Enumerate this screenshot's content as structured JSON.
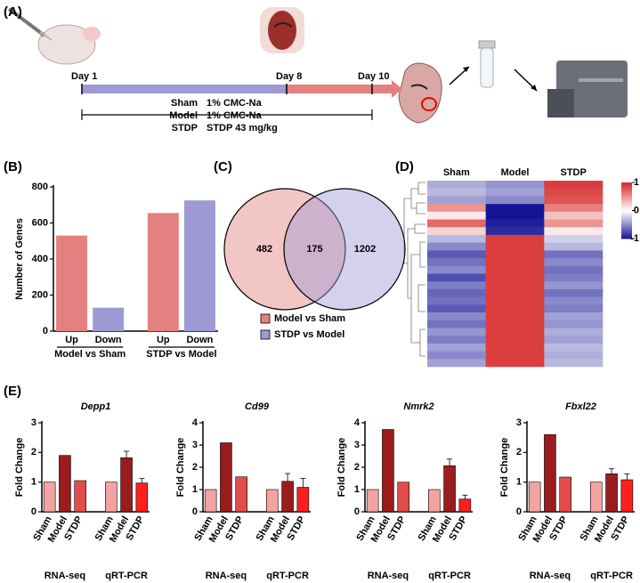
{
  "panel_labels": [
    "(A)",
    "(B)",
    "(C)",
    "(D)",
    "(E)"
  ],
  "timeline": {
    "days": [
      "Day 1",
      "Day 8",
      "Day 10"
    ],
    "groups": [
      {
        "name": "Sham",
        "treatment": "1% CMC-Na"
      },
      {
        "name": "Model",
        "treatment": "1% CMC-Na"
      },
      {
        "name": "STDP",
        "treatment": "STDP 43 mg/kg"
      }
    ]
  },
  "chart_data": [
    {
      "type": "bar",
      "ylabel": "Number of Genes",
      "categories": [
        "Up",
        "Down",
        "Up",
        "Down"
      ],
      "groups": [
        "Model vs Sham",
        "STDP vs Model"
      ],
      "values": [
        530,
        130,
        655,
        725
      ],
      "colors": [
        "#e58080",
        "#9d9ad4",
        "#e58080",
        "#9d9ad4"
      ],
      "ylim": [
        0,
        800
      ],
      "yticks": [
        0,
        200,
        400,
        600,
        800
      ]
    },
    {
      "type": "venn",
      "sets": [
        {
          "name": "Model vs Sham",
          "color": "#e58080"
        },
        {
          "name": "STDP vs Model",
          "color": "#9d9ad4"
        }
      ],
      "values": [
        482,
        175,
        1202
      ]
    },
    {
      "type": "heatmap",
      "columns": [
        "Sham",
        "Model",
        "STDP"
      ],
      "clim": [
        -1,
        1
      ],
      "cticks": [
        1,
        0,
        -1
      ],
      "values": [
        [
          -0.35,
          -0.45,
          0.9
        ],
        [
          -0.3,
          -0.4,
          0.85
        ],
        [
          -0.4,
          -0.5,
          0.8
        ],
        [
          0.5,
          -1,
          0.6
        ],
        [
          0.1,
          -1,
          0.3
        ],
        [
          0.7,
          -0.95,
          0.5
        ],
        [
          0.2,
          -0.9,
          0.1
        ],
        [
          -0.3,
          0.9,
          -0.2
        ],
        [
          -0.5,
          0.9,
          -0.3
        ],
        [
          -0.7,
          0.9,
          -0.6
        ],
        [
          -0.6,
          0.9,
          -0.5
        ],
        [
          -0.5,
          0.9,
          -0.6
        ],
        [
          -0.75,
          0.9,
          -0.55
        ],
        [
          -0.55,
          0.9,
          -0.45
        ],
        [
          -0.65,
          0.9,
          -0.6
        ],
        [
          -0.6,
          0.9,
          -0.5
        ],
        [
          -0.7,
          0.9,
          -0.55
        ],
        [
          -0.5,
          0.9,
          -0.4
        ],
        [
          -0.6,
          0.9,
          -0.45
        ],
        [
          -0.45,
          0.9,
          -0.35
        ],
        [
          -0.55,
          0.9,
          -0.4
        ],
        [
          -0.4,
          0.9,
          -0.3
        ],
        [
          -0.5,
          0.9,
          -0.35
        ],
        [
          -0.4,
          0.9,
          -0.3
        ]
      ]
    },
    {
      "type": "bar",
      "title": "Depp1",
      "ylabel": "Fold Change",
      "categories": [
        "Sham",
        "Model",
        "STDP",
        "Sham",
        "Model",
        "STDP"
      ],
      "groups": [
        "RNA-seq",
        "qRT-PCR"
      ],
      "values": [
        1,
        1.9,
        1.05,
        1,
        1.82,
        0.97
      ],
      "errors": [
        null,
        null,
        null,
        null,
        0.22,
        0.15
      ],
      "colors": [
        "#f4a3a3",
        "#9b1c1c",
        "#e34c4c",
        "#f4a3a3",
        "#9b1c1c",
        "#ff1f1f"
      ],
      "ylim": [
        0,
        3
      ],
      "yticks": [
        0,
        1,
        2,
        3
      ]
    },
    {
      "type": "bar",
      "title": "Cd99",
      "ylabel": "Fold Change",
      "categories": [
        "Sham",
        "Model",
        "STDP",
        "Sham",
        "Model",
        "STDP"
      ],
      "groups": [
        "RNA-seq",
        "qRT-PCR"
      ],
      "values": [
        1,
        3.1,
        1.57,
        1,
        1.37,
        1.1
      ],
      "errors": [
        null,
        null,
        null,
        null,
        0.35,
        0.4
      ],
      "colors": [
        "#f4a3a3",
        "#9b1c1c",
        "#e34c4c",
        "#f4a3a3",
        "#9b1c1c",
        "#ff1f1f"
      ],
      "ylim": [
        0,
        4
      ],
      "yticks": [
        0,
        1,
        2,
        3,
        4
      ]
    },
    {
      "type": "bar",
      "title": "Nmrk2",
      "ylabel": "Fold Change",
      "categories": [
        "Sham",
        "Model",
        "STDP",
        "Sham",
        "Model",
        "STDP"
      ],
      "groups": [
        "RNA-seq",
        "qRT-PCR"
      ],
      "values": [
        1,
        3.7,
        1.33,
        1,
        2.07,
        0.57
      ],
      "errors": [
        null,
        null,
        null,
        null,
        0.3,
        0.18
      ],
      "colors": [
        "#f4a3a3",
        "#9b1c1c",
        "#e34c4c",
        "#f4a3a3",
        "#9b1c1c",
        "#ff1f1f"
      ],
      "ylim": [
        0,
        4
      ],
      "yticks": [
        0,
        1,
        2,
        3,
        4
      ]
    },
    {
      "type": "bar",
      "title": "Fbxl22",
      "ylabel": "Fold Change",
      "categories": [
        "Sham",
        "Model",
        "STDP",
        "Sham",
        "Model",
        "STDP"
      ],
      "groups": [
        "RNA-seq",
        "qRT-PCR"
      ],
      "values": [
        1,
        2.6,
        1.17,
        1,
        1.28,
        1.08
      ],
      "errors": [
        null,
        null,
        null,
        null,
        0.17,
        0.2
      ],
      "colors": [
        "#f4a3a3",
        "#9b1c1c",
        "#e34c4c",
        "#f4a3a3",
        "#9b1c1c",
        "#ff1f1f"
      ],
      "ylim": [
        0,
        3
      ],
      "yticks": [
        0,
        1,
        2,
        3
      ]
    }
  ]
}
